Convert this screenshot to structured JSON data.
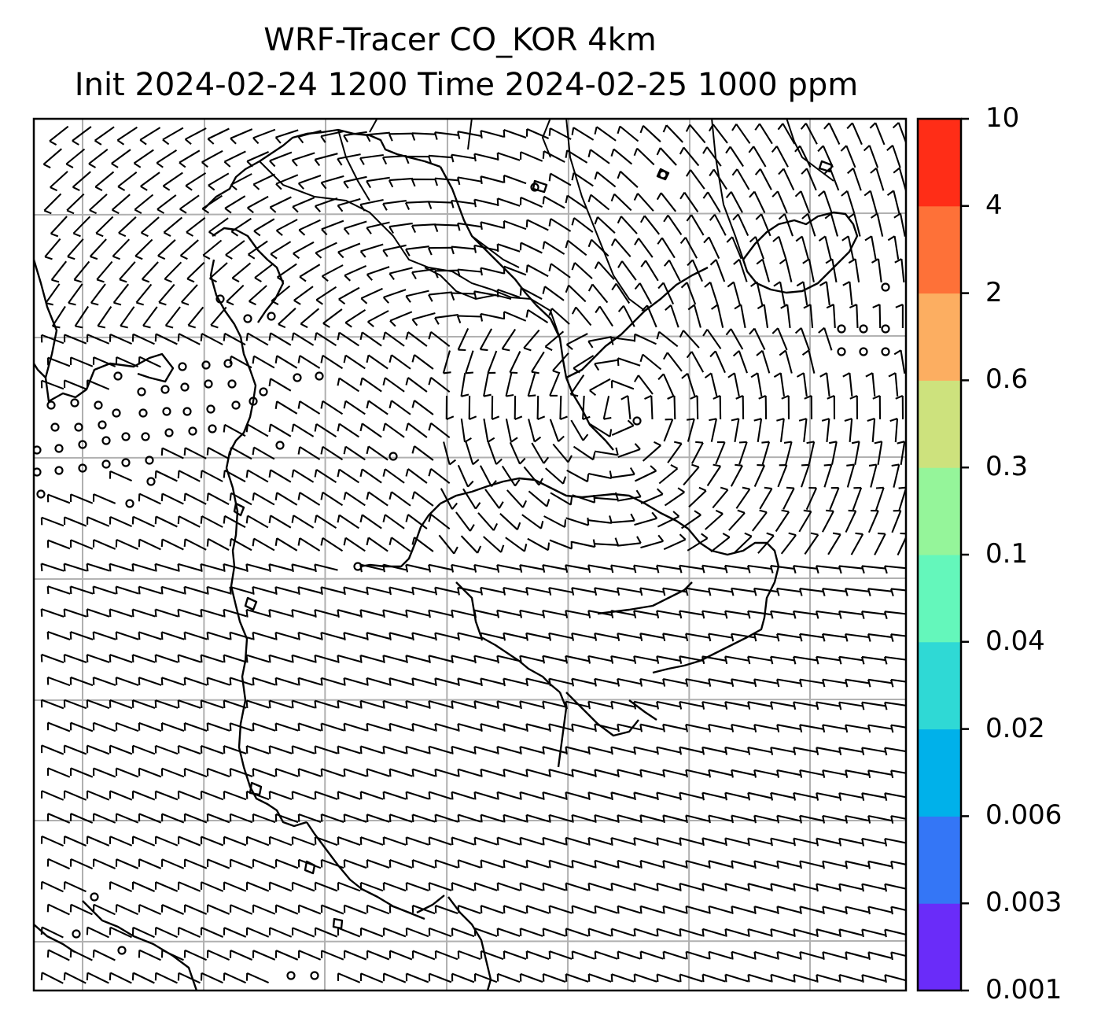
{
  "title": {
    "line1": "WRF-Tracer CO_KOR 4km",
    "line2": "Init 2024-02-24 1200 Time 2024-02-25 1000 ppm"
  },
  "colorbar": {
    "levels": [
      "0.001",
      "0.003",
      "0.006",
      "0.02",
      "0.04",
      "0.1",
      "0.3",
      "0.6",
      "2",
      "4",
      "10"
    ],
    "colors": [
      "#6a2cf9",
      "#3476f6",
      "#00b1ea",
      "#2fd9d5",
      "#64f7bb",
      "#95f59a",
      "#cde27d",
      "#fcae61",
      "#fe7138",
      "#ff2d17"
    ]
  },
  "map": {
    "layers": [
      "coastlines",
      "borders",
      "gridlines",
      "wind-barbs",
      "calm-circles"
    ],
    "gridline_color": "#b0b0b0"
  }
}
